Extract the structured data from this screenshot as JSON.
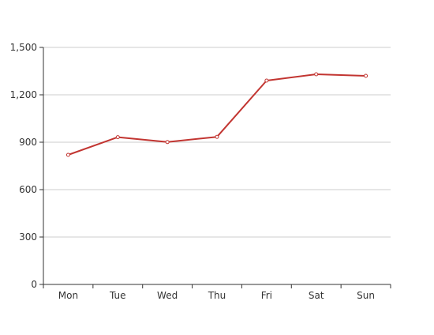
{
  "chart_data": {
    "type": "line",
    "categories": [
      "Mon",
      "Tue",
      "Wed",
      "Thu",
      "Fri",
      "Sat",
      "Sun"
    ],
    "series": [
      {
        "values": [
          820,
          932,
          901,
          934,
          1290,
          1330,
          1320
        ]
      }
    ],
    "y_ticks": [
      "0",
      "300",
      "600",
      "900",
      "1,200",
      "1,500"
    ],
    "ylim": [
      0,
      1500
    ],
    "grid": true,
    "line_color": "#c23531",
    "title": "",
    "xlabel": "",
    "ylabel": ""
  }
}
